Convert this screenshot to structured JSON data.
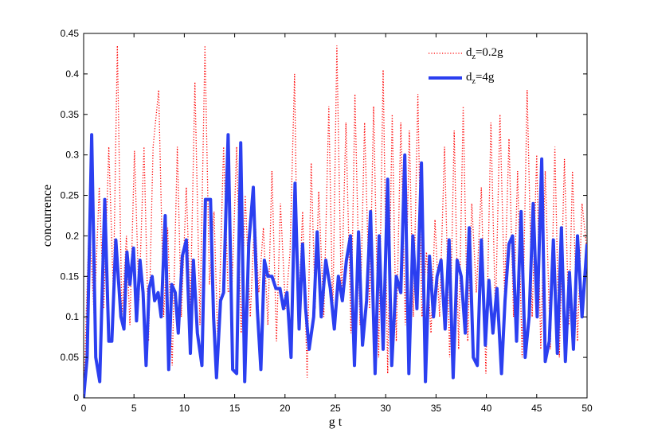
{
  "chart_data": {
    "type": "line",
    "title": "",
    "xlabel": "g t",
    "ylabel": "concurrence",
    "xlim": [
      0,
      50
    ],
    "ylim": [
      0,
      0.45
    ],
    "xticks": [
      0,
      5,
      10,
      15,
      20,
      25,
      30,
      35,
      40,
      45,
      50
    ],
    "yticks": [
      0,
      0.05,
      0.1,
      0.15,
      0.2,
      0.25,
      0.3,
      0.35,
      0.4,
      0.45
    ],
    "xtick_labels": [
      "0",
      "5",
      "10",
      "15",
      "20",
      "25",
      "30",
      "35",
      "40",
      "45",
      "50"
    ],
    "ytick_labels": [
      "0",
      "0.05",
      "0.1",
      "0.15",
      "0.2",
      "0.25",
      "0.3",
      "0.35",
      "0.4",
      "0.45"
    ],
    "grid": false,
    "legend_position": "top-right",
    "series": [
      {
        "name": "d_z=0.2g",
        "legend_main": "d",
        "legend_sub": "z",
        "legend_rest": "=0.2g",
        "style": "dotted",
        "color": "#ff0000",
        "x": [
          0.0,
          0.55,
          1.05,
          1.55,
          2.0,
          2.5,
          2.95,
          3.35,
          3.8,
          4.25,
          4.6,
          5.05,
          5.5,
          6.0,
          6.45,
          6.9,
          7.45,
          7.95,
          8.35,
          8.8,
          9.3,
          9.7,
          10.2,
          10.6,
          11.05,
          11.55,
          12.05,
          12.5,
          12.95,
          13.35,
          13.9,
          14.35,
          14.75,
          15.2,
          15.65,
          16.05,
          16.55,
          17.0,
          17.4,
          17.85,
          18.3,
          18.7,
          19.15,
          19.55,
          20.05,
          20.5,
          20.95,
          21.3,
          21.75,
          22.2,
          22.6,
          23.0,
          23.35,
          23.85,
          24.35,
          24.75,
          25.15,
          25.6,
          26.05,
          26.55,
          26.95,
          27.45,
          27.9,
          28.4,
          28.8,
          29.3,
          29.75,
          30.2,
          30.65,
          31.05,
          31.5,
          31.95,
          32.35,
          32.75,
          33.2,
          33.6,
          34.05,
          34.5,
          34.9,
          35.35,
          35.85,
          36.35,
          36.8,
          37.25,
          37.7,
          38.15,
          38.55,
          39.0,
          39.5,
          39.95,
          40.45,
          40.9,
          41.35,
          41.8,
          42.25,
          42.7,
          43.1,
          43.55,
          44.05,
          44.55,
          45.0,
          45.4,
          45.85,
          46.35,
          46.8,
          47.25,
          47.75,
          48.2,
          48.55,
          49.05,
          49.5,
          50.0
        ],
        "y": [
          0.0,
          0.22,
          0.1,
          0.26,
          0.11,
          0.31,
          0.13,
          0.435,
          0.1,
          0.2,
          0.09,
          0.305,
          0.12,
          0.31,
          0.07,
          0.31,
          0.38,
          0.1,
          0.21,
          0.04,
          0.31,
          0.1,
          0.26,
          0.11,
          0.39,
          0.09,
          0.435,
          0.14,
          0.23,
          0.06,
          0.31,
          0.13,
          0.14,
          0.31,
          0.08,
          0.25,
          0.1,
          0.23,
          0.13,
          0.21,
          0.09,
          0.28,
          0.07,
          0.24,
          0.11,
          0.18,
          0.4,
          0.09,
          0.23,
          0.025,
          0.29,
          0.11,
          0.255,
          0.1,
          0.36,
          0.1,
          0.435,
          0.12,
          0.34,
          0.08,
          0.375,
          0.09,
          0.34,
          0.11,
          0.36,
          0.05,
          0.405,
          0.03,
          0.35,
          0.07,
          0.34,
          0.09,
          0.33,
          0.1,
          0.375,
          0.1,
          0.18,
          0.08,
          0.22,
          0.1,
          0.31,
          0.05,
          0.33,
          0.06,
          0.36,
          0.07,
          0.24,
          0.13,
          0.26,
          0.03,
          0.34,
          0.1,
          0.35,
          0.13,
          0.32,
          0.1,
          0.28,
          0.05,
          0.38,
          0.1,
          0.3,
          0.06,
          0.28,
          0.06,
          0.31,
          0.05,
          0.295,
          0.09,
          0.28,
          0.07,
          0.24,
          0.18
        ]
      },
      {
        "name": "d_z=4g",
        "legend_main": "d",
        "legend_sub": "z",
        "legend_rest": "=4g",
        "style": "solid",
        "color": "#2b3ff0",
        "x": [
          0.0,
          0.35,
          0.8,
          1.2,
          1.6,
          2.1,
          2.5,
          2.8,
          3.2,
          3.7,
          4.0,
          4.3,
          4.6,
          4.95,
          5.25,
          5.6,
          5.9,
          6.2,
          6.5,
          6.8,
          7.05,
          7.4,
          7.7,
          8.1,
          8.45,
          8.75,
          9.1,
          9.4,
          9.8,
          10.2,
          10.6,
          10.9,
          11.3,
          11.75,
          12.1,
          12.6,
          12.9,
          13.2,
          13.6,
          13.9,
          14.35,
          14.8,
          15.2,
          15.6,
          16.0,
          16.4,
          16.85,
          17.25,
          17.6,
          17.95,
          18.3,
          18.7,
          19.1,
          19.5,
          19.85,
          20.2,
          20.6,
          21.0,
          21.4,
          21.75,
          22.05,
          22.4,
          22.85,
          23.2,
          23.6,
          24.05,
          24.5,
          24.9,
          25.3,
          25.7,
          26.1,
          26.5,
          26.9,
          27.3,
          27.7,
          28.1,
          28.5,
          28.95,
          29.35,
          29.75,
          30.2,
          30.6,
          31.05,
          31.5,
          31.9,
          32.3,
          32.7,
          33.1,
          33.55,
          33.95,
          34.35,
          34.75,
          35.1,
          35.5,
          35.9,
          36.3,
          36.7,
          37.1,
          37.5,
          37.9,
          38.3,
          38.7,
          39.1,
          39.5,
          39.9,
          40.25,
          40.65,
          41.05,
          41.5,
          41.85,
          42.25,
          42.6,
          43.0,
          43.45,
          43.85,
          44.25,
          44.65,
          45.05,
          45.5,
          45.85,
          46.25,
          46.65,
          47.05,
          47.45,
          47.85,
          48.25,
          48.65,
          49.05,
          49.5,
          50.0
        ],
        "y": [
          0.0,
          0.05,
          0.325,
          0.05,
          0.02,
          0.245,
          0.07,
          0.07,
          0.195,
          0.1,
          0.085,
          0.18,
          0.14,
          0.185,
          0.095,
          0.17,
          0.13,
          0.04,
          0.135,
          0.15,
          0.12,
          0.13,
          0.1,
          0.225,
          0.035,
          0.14,
          0.13,
          0.08,
          0.175,
          0.195,
          0.055,
          0.17,
          0.08,
          0.04,
          0.245,
          0.245,
          0.1,
          0.025,
          0.12,
          0.13,
          0.325,
          0.035,
          0.03,
          0.315,
          0.02,
          0.19,
          0.26,
          0.11,
          0.035,
          0.17,
          0.15,
          0.15,
          0.135,
          0.135,
          0.11,
          0.13,
          0.05,
          0.265,
          0.085,
          0.19,
          0.11,
          0.06,
          0.1,
          0.205,
          0.1,
          0.17,
          0.135,
          0.085,
          0.15,
          0.12,
          0.17,
          0.2,
          0.04,
          0.205,
          0.065,
          0.12,
          0.23,
          0.03,
          0.2,
          0.06,
          0.27,
          0.04,
          0.15,
          0.13,
          0.3,
          0.03,
          0.2,
          0.11,
          0.29,
          0.02,
          0.175,
          0.1,
          0.15,
          0.17,
          0.085,
          0.195,
          0.025,
          0.17,
          0.15,
          0.08,
          0.21,
          0.05,
          0.04,
          0.195,
          0.065,
          0.145,
          0.08,
          0.135,
          0.03,
          0.12,
          0.19,
          0.2,
          0.07,
          0.23,
          0.05,
          0.1,
          0.24,
          0.1,
          0.295,
          0.045,
          0.07,
          0.195,
          0.055,
          0.21,
          0.045,
          0.155,
          0.06,
          0.2,
          0.1,
          0.19
        ]
      }
    ]
  }
}
